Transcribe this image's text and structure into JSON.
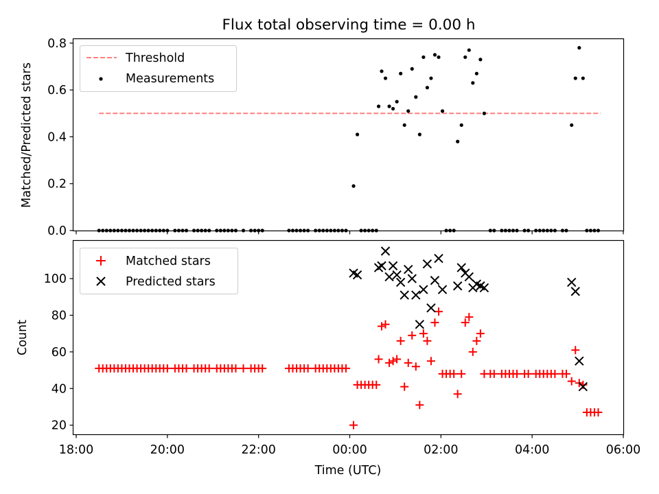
{
  "chart_data": [
    {
      "type": "scatter",
      "title": "Flux total observing time = 0.00 h",
      "xlabel": "",
      "ylabel": "Matched/Predicted stars",
      "xlim": [
        "17:48",
        "06:00"
      ],
      "ylim": [
        0,
        0.82
      ],
      "xticks": [
        "18:00",
        "20:00",
        "22:00",
        "00:00",
        "02:00",
        "04:00",
        "06:00"
      ],
      "yticks": [
        "0.0",
        "0.2",
        "0.4",
        "0.6",
        "0.8"
      ],
      "grid": false,
      "legend_position": "upper-left",
      "series": [
        {
          "name": "Threshold",
          "style": "dashed-line",
          "color": "#ff7f7f",
          "x": [
            "18:30",
            "05:30"
          ],
          "y": [
            0.5,
            0.5
          ]
        },
        {
          "name": "Measurements",
          "style": "dot",
          "color": "#000000",
          "points": [
            [
              "18:30",
              0
            ],
            [
              "18:35",
              0
            ],
            [
              "18:40",
              0
            ],
            [
              "18:45",
              0
            ],
            [
              "18:50",
              0
            ],
            [
              "18:55",
              0
            ],
            [
              "19:00",
              0
            ],
            [
              "19:05",
              0
            ],
            [
              "19:10",
              0
            ],
            [
              "19:15",
              0
            ],
            [
              "19:20",
              0
            ],
            [
              "19:25",
              0
            ],
            [
              "19:30",
              0
            ],
            [
              "19:35",
              0
            ],
            [
              "19:40",
              0
            ],
            [
              "19:45",
              0
            ],
            [
              "19:50",
              0
            ],
            [
              "19:55",
              0
            ],
            [
              "20:00",
              0
            ],
            [
              "20:10",
              0
            ],
            [
              "20:15",
              0
            ],
            [
              "20:20",
              0
            ],
            [
              "20:25",
              0
            ],
            [
              "20:35",
              0
            ],
            [
              "20:40",
              0
            ],
            [
              "20:45",
              0
            ],
            [
              "20:50",
              0
            ],
            [
              "20:55",
              0
            ],
            [
              "21:05",
              0
            ],
            [
              "21:10",
              0
            ],
            [
              "21:15",
              0
            ],
            [
              "21:20",
              0
            ],
            [
              "21:25",
              0
            ],
            [
              "21:30",
              0
            ],
            [
              "21:40",
              0
            ],
            [
              "21:50",
              0
            ],
            [
              "21:55",
              0
            ],
            [
              "22:00",
              0
            ],
            [
              "22:05",
              0
            ],
            [
              "22:40",
              0
            ],
            [
              "22:45",
              0
            ],
            [
              "22:50",
              0
            ],
            [
              "22:55",
              0
            ],
            [
              "23:00",
              0
            ],
            [
              "23:05",
              0
            ],
            [
              "23:15",
              0
            ],
            [
              "23:20",
              0
            ],
            [
              "23:25",
              0
            ],
            [
              "23:30",
              0
            ],
            [
              "23:35",
              0
            ],
            [
              "23:40",
              0
            ],
            [
              "23:45",
              0
            ],
            [
              "23:50",
              0
            ],
            [
              "23:55",
              0
            ],
            [
              "00:05",
              0.19
            ],
            [
              "00:10",
              0.41
            ],
            [
              "00:15",
              0
            ],
            [
              "00:20",
              0
            ],
            [
              "00:25",
              0
            ],
            [
              "00:30",
              0
            ],
            [
              "00:35",
              0
            ],
            [
              "00:38",
              0.53
            ],
            [
              "00:42",
              0.68
            ],
            [
              "00:47",
              0.65
            ],
            [
              "00:52",
              0.53
            ],
            [
              "00:57",
              0.52
            ],
            [
              "01:02",
              0.55
            ],
            [
              "01:07",
              0.67
            ],
            [
              "01:12",
              0.45
            ],
            [
              "01:17",
              0.51
            ],
            [
              "01:22",
              0.69
            ],
            [
              "01:27",
              0.57
            ],
            [
              "01:32",
              0.41
            ],
            [
              "01:37",
              0.74
            ],
            [
              "01:42",
              0.61
            ],
            [
              "01:47",
              0.65
            ],
            [
              "01:52",
              0.75
            ],
            [
              "01:57",
              0.74
            ],
            [
              "02:02",
              0.51
            ],
            [
              "02:07",
              0
            ],
            [
              "02:12",
              0
            ],
            [
              "02:17",
              0
            ],
            [
              "02:22",
              0.38
            ],
            [
              "02:27",
              0.45
            ],
            [
              "02:32",
              0.74
            ],
            [
              "02:37",
              0.77
            ],
            [
              "02:42",
              0.63
            ],
            [
              "02:47",
              0.67
            ],
            [
              "02:52",
              0.73
            ],
            [
              "02:57",
              0.5
            ],
            [
              "03:05",
              0
            ],
            [
              "03:10",
              0
            ],
            [
              "03:20",
              0
            ],
            [
              "03:25",
              0
            ],
            [
              "03:30",
              0
            ],
            [
              "03:35",
              0
            ],
            [
              "03:40",
              0
            ],
            [
              "03:50",
              0
            ],
            [
              "03:55",
              0
            ],
            [
              "04:05",
              0
            ],
            [
              "04:10",
              0
            ],
            [
              "04:15",
              0
            ],
            [
              "04:20",
              0
            ],
            [
              "04:25",
              0
            ],
            [
              "04:30",
              0
            ],
            [
              "04:40",
              0
            ],
            [
              "04:45",
              0
            ],
            [
              "04:52",
              0.45
            ],
            [
              "04:57",
              0.65
            ],
            [
              "05:02",
              0.78
            ],
            [
              "05:07",
              0.65
            ],
            [
              "05:12",
              0
            ],
            [
              "05:17",
              0
            ],
            [
              "05:22",
              0
            ],
            [
              "05:27",
              0
            ]
          ]
        }
      ]
    },
    {
      "type": "scatter",
      "title": "",
      "xlabel": "Time (UTC)",
      "ylabel": "Count",
      "xlim": [
        "17:48",
        "06:00"
      ],
      "ylim": [
        15,
        121
      ],
      "xticks": [
        "18:00",
        "20:00",
        "22:00",
        "00:00",
        "02:00",
        "04:00",
        "06:00"
      ],
      "yticks": [
        "20",
        "40",
        "60",
        "80",
        "100"
      ],
      "grid": false,
      "legend_position": "upper-left",
      "series": [
        {
          "name": "Matched stars",
          "marker": "+",
          "color": "#ff0000",
          "points": [
            [
              "18:30",
              51
            ],
            [
              "18:35",
              51
            ],
            [
              "18:40",
              51
            ],
            [
              "18:45",
              51
            ],
            [
              "18:50",
              51
            ],
            [
              "18:55",
              51
            ],
            [
              "19:00",
              51
            ],
            [
              "19:05",
              51
            ],
            [
              "19:10",
              51
            ],
            [
              "19:15",
              51
            ],
            [
              "19:20",
              51
            ],
            [
              "19:25",
              51
            ],
            [
              "19:30",
              51
            ],
            [
              "19:35",
              51
            ],
            [
              "19:40",
              51
            ],
            [
              "19:45",
              51
            ],
            [
              "19:50",
              51
            ],
            [
              "19:55",
              51
            ],
            [
              "20:00",
              51
            ],
            [
              "20:10",
              51
            ],
            [
              "20:15",
              51
            ],
            [
              "20:20",
              51
            ],
            [
              "20:25",
              51
            ],
            [
              "20:35",
              51
            ],
            [
              "20:40",
              51
            ],
            [
              "20:45",
              51
            ],
            [
              "20:50",
              51
            ],
            [
              "20:55",
              51
            ],
            [
              "21:05",
              51
            ],
            [
              "21:10",
              51
            ],
            [
              "21:15",
              51
            ],
            [
              "21:20",
              51
            ],
            [
              "21:25",
              51
            ],
            [
              "21:30",
              51
            ],
            [
              "21:40",
              51
            ],
            [
              "21:50",
              51
            ],
            [
              "21:55",
              51
            ],
            [
              "22:00",
              51
            ],
            [
              "22:05",
              51
            ],
            [
              "22:40",
              51
            ],
            [
              "22:45",
              51
            ],
            [
              "22:50",
              51
            ],
            [
              "22:55",
              51
            ],
            [
              "23:00",
              51
            ],
            [
              "23:05",
              51
            ],
            [
              "23:15",
              51
            ],
            [
              "23:20",
              51
            ],
            [
              "23:25",
              51
            ],
            [
              "23:30",
              51
            ],
            [
              "23:35",
              51
            ],
            [
              "23:40",
              51
            ],
            [
              "23:45",
              51
            ],
            [
              "23:50",
              51
            ],
            [
              "23:55",
              51
            ],
            [
              "00:05",
              20
            ],
            [
              "00:10",
              42
            ],
            [
              "00:15",
              42
            ],
            [
              "00:20",
              42
            ],
            [
              "00:25",
              42
            ],
            [
              "00:30",
              42
            ],
            [
              "00:35",
              42
            ],
            [
              "00:38",
              56
            ],
            [
              "00:42",
              74
            ],
            [
              "00:47",
              75
            ],
            [
              "00:52",
              54
            ],
            [
              "00:57",
              55
            ],
            [
              "01:02",
              56
            ],
            [
              "01:07",
              66
            ],
            [
              "01:12",
              41
            ],
            [
              "01:17",
              54
            ],
            [
              "01:22",
              69
            ],
            [
              "01:27",
              52
            ],
            [
              "01:32",
              31
            ],
            [
              "01:37",
              70
            ],
            [
              "01:42",
              66
            ],
            [
              "01:47",
              55
            ],
            [
              "01:52",
              76
            ],
            [
              "01:57",
              82
            ],
            [
              "02:02",
              48
            ],
            [
              "02:07",
              48
            ],
            [
              "02:12",
              48
            ],
            [
              "02:17",
              48
            ],
            [
              "02:22",
              37
            ],
            [
              "02:27",
              48
            ],
            [
              "02:32",
              76
            ],
            [
              "02:37",
              79
            ],
            [
              "02:42",
              60
            ],
            [
              "02:47",
              66
            ],
            [
              "02:52",
              70
            ],
            [
              "02:57",
              48
            ],
            [
              "03:05",
              48
            ],
            [
              "03:10",
              48
            ],
            [
              "03:20",
              48
            ],
            [
              "03:25",
              48
            ],
            [
              "03:30",
              48
            ],
            [
              "03:35",
              48
            ],
            [
              "03:40",
              48
            ],
            [
              "03:50",
              48
            ],
            [
              "03:55",
              48
            ],
            [
              "04:05",
              48
            ],
            [
              "04:10",
              48
            ],
            [
              "04:15",
              48
            ],
            [
              "04:20",
              48
            ],
            [
              "04:25",
              48
            ],
            [
              "04:30",
              48
            ],
            [
              "04:40",
              48
            ],
            [
              "04:45",
              48
            ],
            [
              "04:52",
              44
            ],
            [
              "04:57",
              61
            ],
            [
              "05:02",
              43
            ],
            [
              "05:07",
              42
            ],
            [
              "05:12",
              27
            ],
            [
              "05:17",
              27
            ],
            [
              "05:22",
              27
            ],
            [
              "05:27",
              27
            ]
          ]
        },
        {
          "name": "Predicted stars",
          "marker": "x",
          "color": "#000000",
          "points": [
            [
              "00:05",
              103
            ],
            [
              "00:10",
              102
            ],
            [
              "00:38",
              106
            ],
            [
              "00:42",
              107
            ],
            [
              "00:47",
              115
            ],
            [
              "00:52",
              101
            ],
            [
              "00:57",
              107
            ],
            [
              "01:02",
              102
            ],
            [
              "01:07",
              98
            ],
            [
              "01:12",
              91
            ],
            [
              "01:17",
              105
            ],
            [
              "01:22",
              100
            ],
            [
              "01:27",
              91
            ],
            [
              "01:32",
              75
            ],
            [
              "01:37",
              94
            ],
            [
              "01:42",
              108
            ],
            [
              "01:47",
              84
            ],
            [
              "01:52",
              99
            ],
            [
              "01:57",
              111
            ],
            [
              "02:02",
              94
            ],
            [
              "02:22",
              96
            ],
            [
              "02:27",
              106
            ],
            [
              "02:32",
              103
            ],
            [
              "02:37",
              101
            ],
            [
              "02:42",
              95
            ],
            [
              "02:47",
              97
            ],
            [
              "02:52",
              96
            ],
            [
              "02:57",
              95
            ],
            [
              "04:52",
              98
            ],
            [
              "04:57",
              93
            ],
            [
              "05:02",
              55
            ],
            [
              "05:07",
              41
            ]
          ]
        }
      ]
    }
  ]
}
